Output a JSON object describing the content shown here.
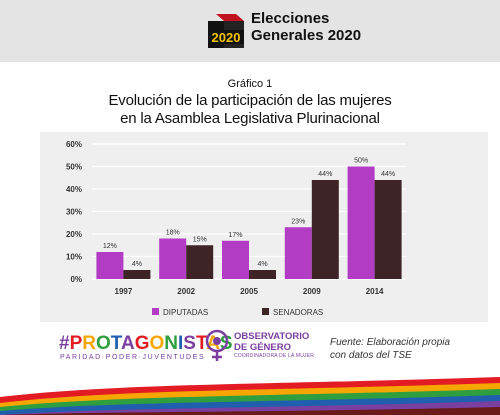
{
  "header": {
    "logo_year": "2020",
    "logo_line1": "Elecciones",
    "logo_line2": "Generales 2020"
  },
  "chart_data": {
    "type": "bar",
    "subtitle": "Gráfico 1",
    "title_line1": "Evolución de la participación de las mujeres",
    "title_line2": "en la Asamblea Legislativa Plurinacional",
    "categories": [
      "1997",
      "2002",
      "2005",
      "2009",
      "2014"
    ],
    "series": [
      {
        "name": "DIPUTADAS",
        "values": [
          12,
          18,
          17,
          23,
          50
        ],
        "labels": [
          "12%",
          "18%",
          "17%",
          "23%",
          "50%"
        ],
        "color": "#b23cc4"
      },
      {
        "name": "SENADORAS",
        "values": [
          4,
          15,
          4,
          44,
          44
        ],
        "labels": [
          "4%",
          "15%",
          "4%",
          "44%",
          "44%"
        ],
        "color": "#3e2427"
      }
    ],
    "ylim": [
      0,
      60
    ],
    "yticks": [
      "0%",
      "10%",
      "20%",
      "30%",
      "40%",
      "50%",
      "60%"
    ],
    "grid": true,
    "legend_position": "bottom"
  },
  "footer": {
    "protagonistas": "#PROTAGONISTAS",
    "protagonistas_sub": "PARIDAD·PODER·JUVENTUDES",
    "observatorio_line1": "OBSERVATORIO",
    "observatorio_line2": "DE GÉNERO",
    "observatorio_sub": "COORDINADORA DE LA MUJER",
    "source_line1": "Fuente: Elaboración propia",
    "source_line2": "con datos del TSE"
  },
  "colors": {
    "diputadas": "#b23cc4",
    "senadoras": "#3e2427",
    "brand_purple": "#7b3fa0"
  }
}
